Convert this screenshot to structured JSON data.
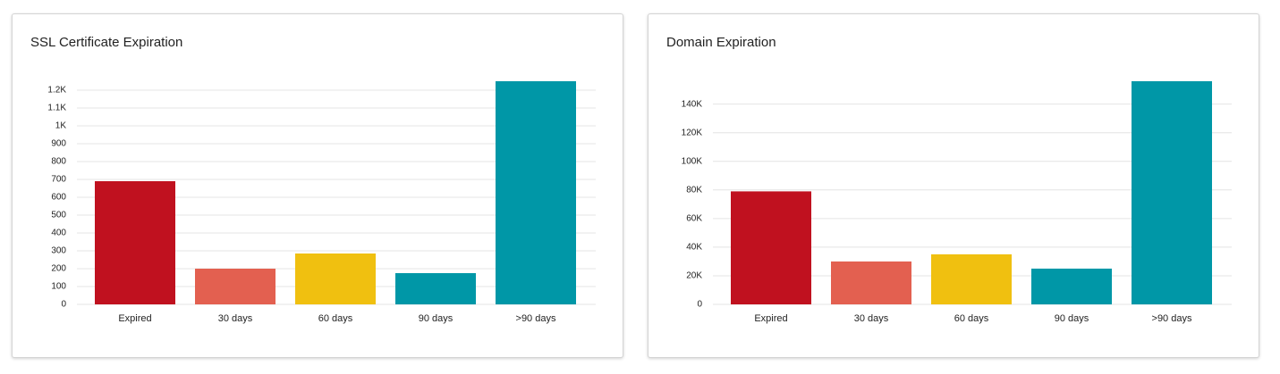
{
  "chart_data": [
    {
      "type": "bar",
      "title": "SSL Certificate Expiration",
      "categories": [
        "Expired",
        "30 days",
        "60 days",
        "90 days",
        ">90 days"
      ],
      "values": [
        690,
        200,
        285,
        175,
        1250
      ],
      "colors": [
        "#c0111f",
        "#e36050",
        "#f0c010",
        "#0097a7",
        "#0097a7"
      ],
      "ylim": [
        0,
        1250
      ],
      "yticks": [
        0,
        100,
        200,
        300,
        400,
        500,
        600,
        700,
        800,
        900,
        {
          "value": 1000,
          "label": "1K"
        },
        {
          "value": 1100,
          "label": "1.1K"
        },
        {
          "value": 1200,
          "label": "1.2K"
        }
      ],
      "grid": true
    },
    {
      "type": "bar",
      "title": "Domain Expiration",
      "categories": [
        "Expired",
        "30 days",
        "60 days",
        "90 days",
        ">90 days"
      ],
      "values": [
        79000,
        30000,
        35000,
        25000,
        156000
      ],
      "colors": [
        "#c0111f",
        "#e36050",
        "#f0c010",
        "#0097a7",
        "#0097a7"
      ],
      "ylim": [
        0,
        156000
      ],
      "yticks": [
        0,
        {
          "value": 20000,
          "label": "20K"
        },
        {
          "value": 40000,
          "label": "40K"
        },
        {
          "value": 60000,
          "label": "60K"
        },
        {
          "value": 80000,
          "label": "80K"
        },
        {
          "value": 100000,
          "label": "100K"
        },
        {
          "value": 120000,
          "label": "120K"
        },
        {
          "value": 140000,
          "label": "140K"
        }
      ],
      "grid": true
    }
  ]
}
